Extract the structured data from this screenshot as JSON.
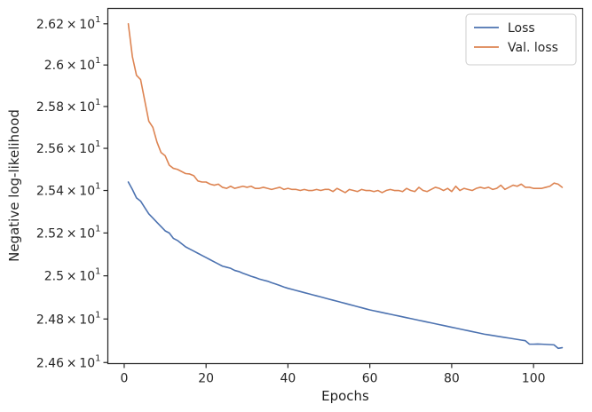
{
  "chart_data": {
    "type": "line",
    "xlabel": "Epochs",
    "ylabel": "Negative log-likelihood",
    "xlim": [
      -4,
      112
    ],
    "ylim": [
      24.595,
      26.275
    ],
    "y_scale": "log",
    "grid": false,
    "legend_position": "top-right",
    "x_ticks": [
      0,
      20,
      40,
      60,
      80,
      100
    ],
    "x_tick_labels": [
      "0",
      "20",
      "40",
      "60",
      "80",
      "100"
    ],
    "y_ticks": [
      24.6,
      24.8,
      25.0,
      25.2,
      25.4,
      25.6,
      25.8,
      26.0,
      26.2
    ],
    "y_tick_labels": [
      {
        "mantissa": "2.46",
        "base": "10",
        "exp": "1"
      },
      {
        "mantissa": "2.48",
        "base": "10",
        "exp": "1"
      },
      {
        "mantissa": "2.5",
        "base": "10",
        "exp": "1"
      },
      {
        "mantissa": "2.52",
        "base": "10",
        "exp": "1"
      },
      {
        "mantissa": "2.54",
        "base": "10",
        "exp": "1"
      },
      {
        "mantissa": "2.56",
        "base": "10",
        "exp": "1"
      },
      {
        "mantissa": "2.58",
        "base": "10",
        "exp": "1"
      },
      {
        "mantissa": "2.6",
        "base": "10",
        "exp": "1"
      },
      {
        "mantissa": "2.62",
        "base": "10",
        "exp": "1"
      }
    ],
    "series": [
      {
        "name": "Loss",
        "color": "#4c72b0",
        "x": [
          1,
          2,
          3,
          4,
          5,
          6,
          7,
          8,
          9,
          10,
          11,
          12,
          13,
          14,
          15,
          16,
          17,
          18,
          19,
          20,
          21,
          22,
          23,
          24,
          25,
          26,
          27,
          28,
          29,
          30,
          31,
          32,
          33,
          34,
          35,
          36,
          37,
          38,
          39,
          40,
          41,
          42,
          43,
          44,
          45,
          46,
          47,
          48,
          49,
          50,
          51,
          52,
          53,
          54,
          55,
          56,
          57,
          58,
          59,
          60,
          61,
          62,
          63,
          64,
          65,
          66,
          67,
          68,
          69,
          70,
          71,
          72,
          73,
          74,
          75,
          76,
          77,
          78,
          79,
          80,
          81,
          82,
          83,
          84,
          85,
          86,
          87,
          88,
          89,
          90,
          91,
          92,
          93,
          94,
          95,
          96,
          97,
          98,
          99,
          100,
          101,
          102,
          103,
          104,
          105,
          106,
          107
        ],
        "values": [
          25.44,
          25.405,
          25.365,
          25.35,
          25.32,
          25.29,
          25.27,
          25.25,
          25.23,
          25.21,
          25.2,
          25.175,
          25.165,
          25.15,
          25.135,
          25.125,
          25.115,
          25.105,
          25.095,
          25.085,
          25.075,
          25.065,
          25.055,
          25.045,
          25.04,
          25.035,
          25.025,
          25.02,
          25.012,
          25.005,
          24.998,
          24.992,
          24.985,
          24.98,
          24.975,
          24.968,
          24.962,
          24.955,
          24.948,
          24.942,
          24.937,
          24.932,
          24.927,
          24.922,
          24.917,
          24.912,
          24.907,
          24.902,
          24.897,
          24.892,
          24.887,
          24.882,
          24.877,
          24.872,
          24.867,
          24.862,
          24.857,
          24.852,
          24.847,
          24.842,
          24.838,
          24.834,
          24.83,
          24.826,
          24.822,
          24.818,
          24.814,
          24.81,
          24.806,
          24.802,
          24.798,
          24.794,
          24.79,
          24.786,
          24.782,
          24.778,
          24.774,
          24.77,
          24.766,
          24.762,
          24.758,
          24.754,
          24.75,
          24.746,
          24.742,
          24.738,
          24.734,
          24.73,
          24.727,
          24.724,
          24.721,
          24.718,
          24.715,
          24.712,
          24.709,
          24.706,
          24.703,
          24.7,
          24.684,
          24.684,
          24.685,
          24.684,
          24.683,
          24.682,
          24.681,
          24.665,
          24.668
        ]
      },
      {
        "name": "Val. loss",
        "color": "#dd8452",
        "x": [
          1,
          2,
          3,
          4,
          5,
          6,
          7,
          8,
          9,
          10,
          11,
          12,
          13,
          14,
          15,
          16,
          17,
          18,
          19,
          20,
          21,
          22,
          23,
          24,
          25,
          26,
          27,
          28,
          29,
          30,
          31,
          32,
          33,
          34,
          35,
          36,
          37,
          38,
          39,
          40,
          41,
          42,
          43,
          44,
          45,
          46,
          47,
          48,
          49,
          50,
          51,
          52,
          53,
          54,
          55,
          56,
          57,
          58,
          59,
          60,
          61,
          62,
          63,
          64,
          65,
          66,
          67,
          68,
          69,
          70,
          71,
          72,
          73,
          74,
          75,
          76,
          77,
          78,
          79,
          80,
          81,
          82,
          83,
          84,
          85,
          86,
          87,
          88,
          89,
          90,
          91,
          92,
          93,
          94,
          95,
          96,
          97,
          98,
          99,
          100,
          101,
          102,
          103,
          104,
          105,
          106,
          107
        ],
        "values": [
          26.2,
          26.04,
          25.95,
          25.93,
          25.83,
          25.73,
          25.7,
          25.63,
          25.58,
          25.565,
          25.52,
          25.505,
          25.5,
          25.49,
          25.48,
          25.478,
          25.47,
          25.445,
          25.44,
          25.44,
          25.43,
          25.425,
          25.43,
          25.415,
          25.41,
          25.42,
          25.41,
          25.415,
          25.42,
          25.415,
          25.42,
          25.41,
          25.41,
          25.415,
          25.41,
          25.405,
          25.41,
          25.415,
          25.405,
          25.41,
          25.405,
          25.405,
          25.4,
          25.405,
          25.4,
          25.4,
          25.405,
          25.4,
          25.405,
          25.405,
          25.395,
          25.41,
          25.4,
          25.39,
          25.405,
          25.4,
          25.395,
          25.405,
          25.4,
          25.4,
          25.395,
          25.4,
          25.39,
          25.4,
          25.405,
          25.4,
          25.4,
          25.395,
          25.41,
          25.4,
          25.395,
          25.415,
          25.4,
          25.395,
          25.405,
          25.415,
          25.41,
          25.4,
          25.41,
          25.395,
          25.42,
          25.4,
          25.41,
          25.405,
          25.4,
          25.41,
          25.415,
          25.41,
          25.415,
          25.405,
          25.41,
          25.425,
          25.405,
          25.415,
          25.425,
          25.42,
          25.43,
          25.415,
          25.415,
          25.41,
          25.41,
          25.41,
          25.415,
          25.42,
          25.435,
          25.43,
          25.415
        ]
      }
    ]
  }
}
